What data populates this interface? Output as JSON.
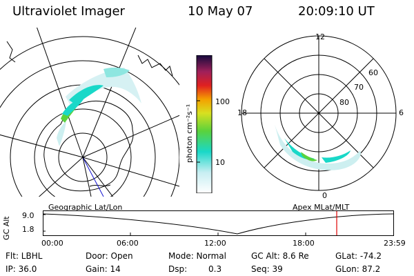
{
  "header": {
    "instrument": "Ultraviolet Imager",
    "date": "10 May 07",
    "time": "20:09:10 UT"
  },
  "colorbar": {
    "unit_label": "photon cm⁻²s⁻¹",
    "ticks": [
      "100",
      "10"
    ]
  },
  "polar_plot": {
    "mlt_labels": [
      "12",
      "18",
      "6",
      "0"
    ],
    "lat_labels": [
      "60",
      "70",
      "80"
    ]
  },
  "map_labels": {
    "left": "Geographic Lat/Lon",
    "right": "Apex MLat/MLT"
  },
  "orbit_plot": {
    "ylabel": "GC Alt",
    "yticks": [
      "9.0",
      "1.8"
    ],
    "xticks": [
      "00:00",
      "06:00",
      "12:00",
      "18:00",
      "23:59"
    ],
    "marker_time": "20:09"
  },
  "info": {
    "flt": "Flt: LBHL",
    "ip": "IP: 36.0",
    "door": "Door: Open",
    "gain": "Gain: 14",
    "mode": "Mode: Normal",
    "dsp_label": "Dsp:",
    "dsp_value": "0.3",
    "gc_alt": "GC Alt: 8.6 Re",
    "seq": "Seq: 39",
    "glat": "GLat: -74.2",
    "glon": "GLon: 87.2"
  },
  "colors": {
    "aurora_bright": "#19d8c8",
    "aurora_green": "#5ad23c",
    "aurora_faint": "#cdeff0",
    "marker": "#e00000",
    "pointer": "#1010d0"
  }
}
